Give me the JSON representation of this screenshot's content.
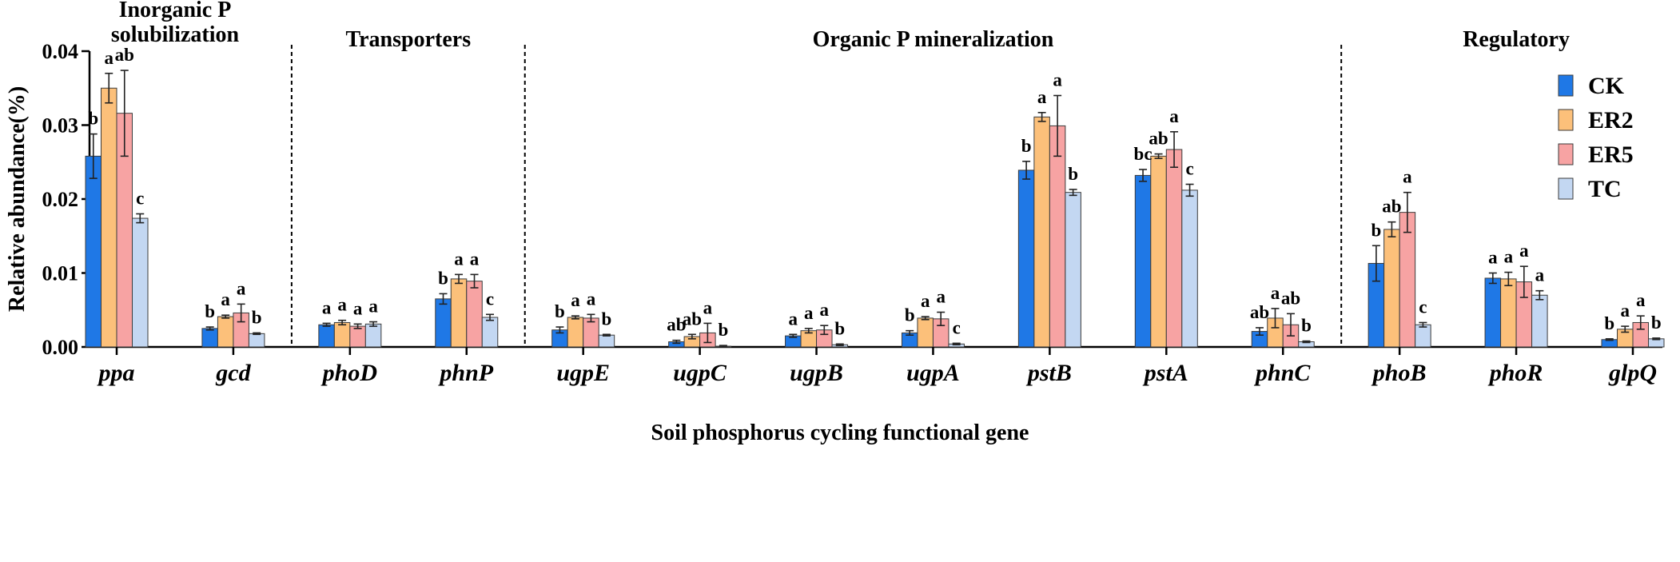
{
  "chart_data": {
    "type": "bar",
    "ylabel": "Relative abundance(%)",
    "xlabel": "Soil phosphorus cycling functional gene",
    "ylim": [
      0,
      0.04
    ],
    "yticks": [
      "0.00",
      "0.01",
      "0.02",
      "0.03",
      "0.04"
    ],
    "categories": [
      "ppa",
      "gcd",
      "phoD",
      "phnP",
      "ugpE",
      "ugpC",
      "ugpB",
      "ugpA",
      "pstB",
      "pstA",
      "phnC",
      "phoB",
      "phoR",
      "glpQ"
    ],
    "sections": [
      {
        "label_lines": [
          "Inorganic P",
          "solubilization"
        ],
        "genes": [
          "ppa",
          "gcd"
        ]
      },
      {
        "label_lines": [
          "Transporters"
        ],
        "genes": [
          "phoD",
          "phnP"
        ]
      },
      {
        "label_lines": [
          "Organic P mineralization"
        ],
        "genes": [
          "ugpE",
          "ugpC",
          "ugpB",
          "ugpA",
          "pstB",
          "pstA",
          "phnC"
        ]
      },
      {
        "label_lines": [
          "Regulatory"
        ],
        "genes": [
          "phoB",
          "phoR",
          "glpQ"
        ]
      }
    ],
    "series": [
      {
        "name": "CK",
        "color": "#1f78e6",
        "values": [
          0.0258,
          0.0025,
          0.003,
          0.0065,
          0.0023,
          0.0007,
          0.0015,
          0.0019,
          0.0239,
          0.0232,
          0.0021,
          0.0113,
          0.0093,
          0.001
        ],
        "errors": [
          0.003,
          0.0002,
          0.0002,
          0.0007,
          0.0004,
          0.0002,
          0.0002,
          0.0003,
          0.0012,
          0.0008,
          0.0005,
          0.0024,
          0.0007,
          0.0001
        ],
        "sig": [
          "b",
          "b",
          "a",
          "b",
          "b",
          "ab",
          "a",
          "b",
          "b",
          "bc",
          "ab",
          "b",
          "a",
          "b"
        ]
      },
      {
        "name": "ER2",
        "color": "#fcc07a",
        "values": [
          0.035,
          0.0041,
          0.0033,
          0.0092,
          0.004,
          0.0014,
          0.0022,
          0.0039,
          0.0311,
          0.0258,
          0.0039,
          0.0159,
          0.0092,
          0.0024
        ],
        "errors": [
          0.002,
          0.0002,
          0.0003,
          0.0006,
          0.0002,
          0.0003,
          0.0003,
          0.0002,
          0.0006,
          0.0003,
          0.0013,
          0.001,
          0.0009,
          0.0004
        ],
        "sig": [
          "a",
          "a",
          "a",
          "a",
          "a",
          "ab",
          "a",
          "a",
          "a",
          "ab",
          "a",
          "ab",
          "a",
          "a"
        ]
      },
      {
        "name": "ER5",
        "color": "#f7a3a3",
        "values": [
          0.0316,
          0.0046,
          0.0028,
          0.0089,
          0.0039,
          0.0019,
          0.0023,
          0.0038,
          0.0299,
          0.0267,
          0.003,
          0.0182,
          0.0088,
          0.0033
        ],
        "errors": [
          0.0058,
          0.0012,
          0.0003,
          0.0009,
          0.0005,
          0.0013,
          0.0006,
          0.0009,
          0.0041,
          0.0024,
          0.0015,
          0.0027,
          0.0021,
          0.0009
        ],
        "sig": [
          "ab",
          "a",
          "a",
          "a",
          "a",
          "a",
          "a",
          "a",
          "a",
          "a",
          "ab",
          "a",
          "a",
          "a"
        ]
      },
      {
        "name": "TC",
        "color": "#c3d7f2",
        "values": [
          0.0174,
          0.0018,
          0.0031,
          0.004,
          0.0016,
          0.0001,
          0.0003,
          0.0004,
          0.0209,
          0.0212,
          0.0007,
          0.003,
          0.007,
          0.0011
        ],
        "errors": [
          0.0006,
          0.0001,
          0.0003,
          0.0004,
          0.0001,
          0.0001,
          0.0001,
          0.0001,
          0.0004,
          0.0008,
          0.0001,
          0.0003,
          0.0006,
          0.0001
        ],
        "sig": [
          "c",
          "b",
          "a",
          "c",
          "b",
          "b",
          "b",
          "c",
          "b",
          "c",
          "b",
          "c",
          "a",
          "b"
        ]
      }
    ],
    "legend_position": "top-right",
    "section_dividers": "dashed vertical lines"
  }
}
